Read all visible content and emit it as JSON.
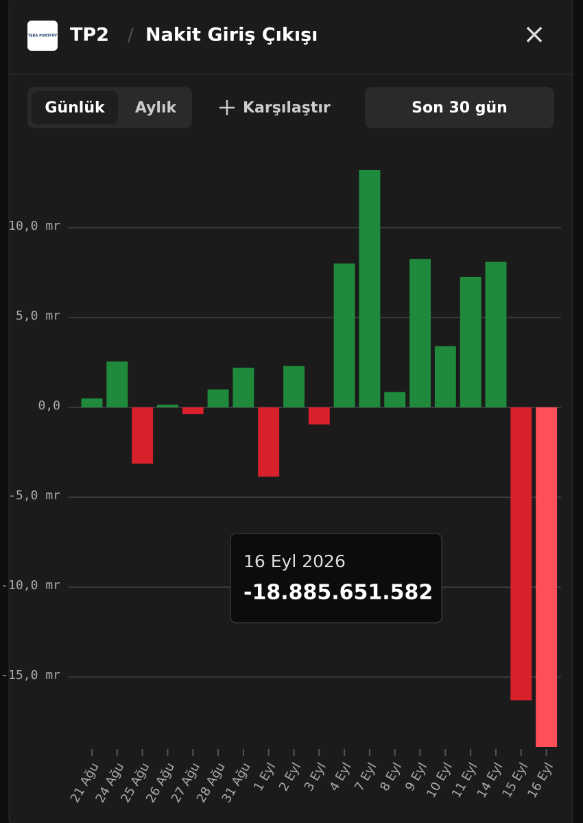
{
  "header": {
    "logo": "TERA PORTFÖY",
    "fund": "TP2",
    "separator": "/",
    "title": "Nakit Giriş Çıkışı",
    "close": "×"
  },
  "controls": {
    "tabs": [
      "Günlük",
      "Aylık"
    ],
    "compare": "Karşılaştır",
    "range": "Son 30 gün"
  },
  "tooltip": {
    "date": "16 Eyl 2026",
    "value": "-18.885.651.582"
  },
  "chart_data": {
    "type": "bar",
    "categories": [
      "21 Ağu",
      "24 Ağu",
      "25 Ağu",
      "26 Ağu",
      "27 Ağu",
      "28 Ağu",
      "31 Ağu",
      "1 Eyl",
      "2 Eyl",
      "3 Eyl",
      "4 Eyl",
      "7 Eyl",
      "8 Eyl",
      "9 Eyl",
      "10 Eyl",
      "11 Eyl",
      "14 Eyl",
      "15 Eyl",
      "16 Eyl"
    ],
    "values": [
      0.5,
      2.55,
      -3.13,
      0.15,
      -0.38,
      1.0,
      2.2,
      -3.85,
      2.3,
      -0.95,
      8.0,
      13.2,
      0.85,
      8.25,
      3.4,
      7.25,
      8.1,
      -16.3,
      -18.885651582
    ],
    "colors": [
      "#1f8a3b",
      "#1f8a3b",
      "#d9212b",
      "#1f8a3b",
      "#d9212b",
      "#1f8a3b",
      "#1f8a3b",
      "#d9212b",
      "#1f8a3b",
      "#d9212b",
      "#1f8a3b",
      "#1f8a3b",
      "#1f8a3b",
      "#1f8a3b",
      "#1f8a3b",
      "#1f8a3b",
      "#1f8a3b",
      "#d9212b",
      "#ff4f59"
    ],
    "ylim": [
      -19,
      14
    ],
    "yticks": [
      {
        "value": -15,
        "label": "-15,0 mr"
      },
      {
        "value": -10,
        "label": "-10,0 mr"
      },
      {
        "value": -5,
        "label": "-5,0 mr"
      },
      {
        "value": 0,
        "label": "0,0"
      },
      {
        "value": 5,
        "label": "5,0 mr"
      },
      {
        "value": 10,
        "label": "10,0 mr"
      }
    ],
    "grid": true
  }
}
